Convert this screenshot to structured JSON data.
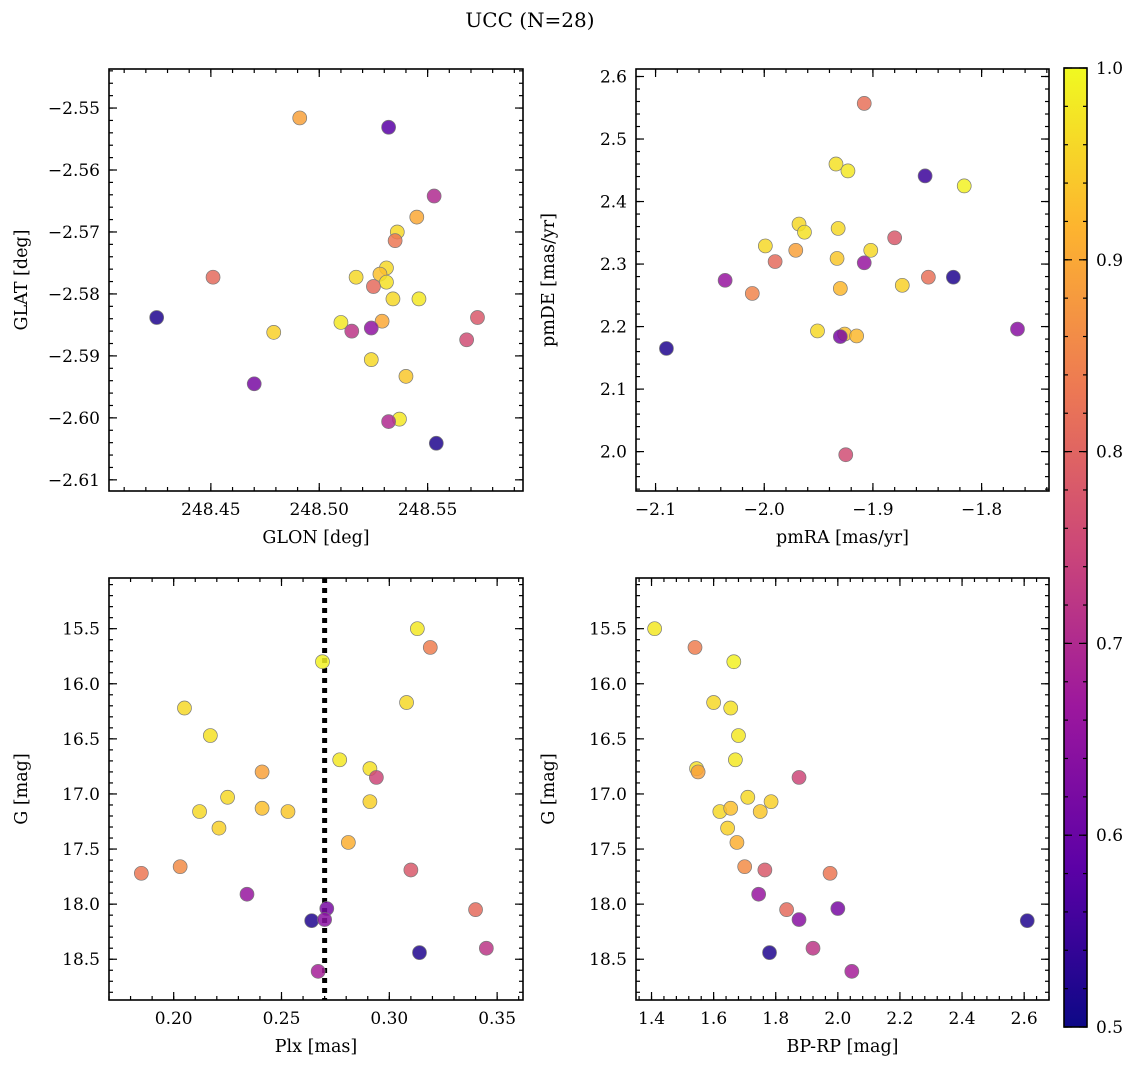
{
  "figure": {
    "title": "UCC (N=28)"
  },
  "colorbar": {
    "min": 0.5,
    "max": 1.0,
    "ticks": [
      0.5,
      0.6,
      0.7,
      0.8,
      0.9,
      1.0
    ],
    "tick_labels": [
      "0.5",
      "0.6",
      "0.7",
      "0.8",
      "0.9",
      "1.0"
    ],
    "colormap": "plasma",
    "colors": [
      "#0d0887",
      "#5c01a6",
      "#9c179e",
      "#cc4778",
      "#ed7953",
      "#fdb42f",
      "#f0f921"
    ]
  },
  "chart_data": [
    {
      "id": "glon-glat",
      "type": "scatter",
      "xlabel": "GLON [deg]",
      "ylabel": "GLAT [deg]",
      "xlim": [
        248.403,
        248.594
      ],
      "ylim": [
        -2.6118,
        -2.5437
      ],
      "xticks": [
        248.45,
        248.5,
        248.55
      ],
      "xtick_labels": [
        "248.45",
        "248.50",
        "248.55"
      ],
      "yticks": [
        -2.61,
        -2.6,
        -2.59,
        -2.58,
        -2.57,
        -2.56,
        -2.55
      ],
      "ytick_labels": [
        "−2.61",
        "−2.60",
        "−2.59",
        "−2.58",
        "−2.57",
        "−2.56",
        "−2.55"
      ],
      "x": [
        248.491,
        248.532,
        248.553,
        248.545,
        248.536,
        248.535,
        248.531,
        248.528,
        248.517,
        248.531,
        248.525,
        248.425,
        248.451,
        248.534,
        248.546,
        248.573,
        248.51,
        248.529,
        248.524,
        248.515,
        248.479,
        248.568,
        248.524,
        248.54,
        248.47,
        248.537,
        248.532,
        248.554
      ],
      "y": [
        -2.5516,
        -2.5531,
        -2.5642,
        -2.5676,
        -2.57,
        -2.5714,
        -2.5758,
        -2.5768,
        -2.5773,
        -2.5781,
        -2.5788,
        -2.5838,
        -2.5773,
        -2.5808,
        -2.5808,
        -2.5838,
        -2.5846,
        -2.5844,
        -2.5855,
        -2.586,
        -2.5862,
        -2.5874,
        -2.5906,
        -2.5933,
        -2.5945,
        -2.6002,
        -2.6006,
        -2.6041
      ],
      "c": [
        0.89,
        0.58,
        0.7,
        0.9,
        0.96,
        0.83,
        0.96,
        0.93,
        0.96,
        0.97,
        0.81,
        0.52,
        0.81,
        0.96,
        0.98,
        0.78,
        0.98,
        0.9,
        0.65,
        0.72,
        0.95,
        0.76,
        0.96,
        0.94,
        0.62,
        0.98,
        0.7,
        0.52
      ]
    },
    {
      "id": "pmra-pmde",
      "type": "scatter",
      "xlabel": "pmRA [mas/yr]",
      "ylabel": "pmDE [mas/yr]",
      "xlim": [
        -2.118,
        -1.738
      ],
      "ylim": [
        1.937,
        2.612
      ],
      "xticks": [
        -2.1,
        -2.0,
        -1.9,
        -1.8
      ],
      "xtick_labels": [
        "−2.1",
        "−2.0",
        "−1.9",
        "−1.8"
      ],
      "yticks": [
        2.0,
        2.1,
        2.2,
        2.3,
        2.4,
        2.5,
        2.6
      ],
      "ytick_labels": [
        "2.0",
        "2.1",
        "2.2",
        "2.3",
        "2.4",
        "2.5",
        "2.6"
      ],
      "x": [
        -1.908,
        -1.934,
        -1.923,
        -1.852,
        -1.816,
        -1.968,
        -1.932,
        -1.963,
        -1.88,
        -1.999,
        -1.971,
        -1.902,
        -1.99,
        -1.933,
        -2.036,
        -1.826,
        -1.849,
        -1.873,
        -1.93,
        -2.011,
        -1.951,
        -1.926,
        -1.915,
        -1.908,
        -1.93,
        -2.09,
        -1.767,
        -1.925
      ],
      "y": [
        2.557,
        2.46,
        2.449,
        2.441,
        2.425,
        2.364,
        2.357,
        2.351,
        2.342,
        2.329,
        2.322,
        2.322,
        2.304,
        2.309,
        2.274,
        2.279,
        2.279,
        2.266,
        2.261,
        2.253,
        2.193,
        2.188,
        2.185,
        2.302,
        2.184,
        2.165,
        2.196,
        1.995
      ],
      "c": [
        0.82,
        0.97,
        0.98,
        0.55,
        0.99,
        0.96,
        0.96,
        0.97,
        0.78,
        0.96,
        0.89,
        0.96,
        0.81,
        0.94,
        0.66,
        0.52,
        0.82,
        0.95,
        0.92,
        0.85,
        0.96,
        0.93,
        0.92,
        0.66,
        0.62,
        0.52,
        0.64,
        0.76
      ]
    },
    {
      "id": "plx-g",
      "type": "scatter",
      "xlabel": "Plx [mas]",
      "ylabel": "G [mag]",
      "xlim": [
        0.17,
        0.362
      ],
      "ylim": [
        18.87,
        15.04
      ],
      "y_inverted": true,
      "vline": 0.27,
      "xticks": [
        0.2,
        0.25,
        0.3,
        0.35
      ],
      "xtick_labels": [
        "0.20",
        "0.25",
        "0.30",
        "0.35"
      ],
      "yticks": [
        15.5,
        16.0,
        16.5,
        17.0,
        17.5,
        18.0,
        18.5
      ],
      "ytick_labels": [
        "15.5",
        "16.0",
        "16.5",
        "17.0",
        "17.5",
        "18.0",
        "18.5"
      ],
      "x": [
        0.313,
        0.319,
        0.269,
        0.205,
        0.308,
        0.217,
        0.277,
        0.291,
        0.294,
        0.241,
        0.291,
        0.225,
        0.212,
        0.241,
        0.253,
        0.221,
        0.281,
        0.203,
        0.185,
        0.31,
        0.234,
        0.34,
        0.271,
        0.264,
        0.27,
        0.314,
        0.345,
        0.267
      ],
      "y": [
        15.5,
        15.67,
        15.8,
        16.22,
        16.17,
        16.47,
        16.69,
        16.77,
        16.85,
        16.8,
        17.07,
        17.03,
        17.16,
        17.13,
        17.16,
        17.31,
        17.44,
        17.66,
        17.72,
        17.69,
        17.91,
        18.05,
        18.04,
        18.15,
        18.14,
        18.44,
        18.4,
        18.61
      ],
      "c": [
        0.98,
        0.84,
        0.99,
        0.96,
        0.96,
        0.97,
        0.98,
        0.97,
        0.75,
        0.89,
        0.95,
        0.96,
        0.96,
        0.93,
        0.94,
        0.95,
        0.91,
        0.86,
        0.83,
        0.78,
        0.66,
        0.81,
        0.62,
        0.52,
        0.64,
        0.52,
        0.72,
        0.68
      ]
    },
    {
      "id": "bprp-g",
      "type": "scatter",
      "xlabel": "BP-RP [mag]",
      "ylabel": "G [mag]",
      "xlim": [
        1.35,
        2.68
      ],
      "ylim": [
        18.87,
        15.04
      ],
      "y_inverted": true,
      "xticks": [
        1.4,
        1.6,
        1.8,
        2.0,
        2.2,
        2.4,
        2.6
      ],
      "xtick_labels": [
        "1.4",
        "1.6",
        "1.8",
        "2.0",
        "2.2",
        "2.4",
        "2.6"
      ],
      "yticks": [
        15.5,
        16.0,
        16.5,
        17.0,
        17.5,
        18.0,
        18.5
      ],
      "ytick_labels": [
        "15.5",
        "16.0",
        "16.5",
        "17.0",
        "17.5",
        "18.0",
        "18.5"
      ],
      "x": [
        1.41,
        1.54,
        1.665,
        1.6,
        1.655,
        1.68,
        1.67,
        1.545,
        1.55,
        1.875,
        1.71,
        1.785,
        1.62,
        1.655,
        1.75,
        1.645,
        1.675,
        1.7,
        1.765,
        1.975,
        1.745,
        1.835,
        2.0,
        2.61,
        1.875,
        1.78,
        1.92,
        2.045
      ],
      "y": [
        15.5,
        15.67,
        15.8,
        16.17,
        16.22,
        16.47,
        16.69,
        16.77,
        16.8,
        16.85,
        17.03,
        17.07,
        17.16,
        17.13,
        17.16,
        17.31,
        17.44,
        17.66,
        17.69,
        17.72,
        17.91,
        18.05,
        18.04,
        18.15,
        18.14,
        18.44,
        18.4,
        18.61
      ],
      "c": [
        0.98,
        0.84,
        0.99,
        0.96,
        0.97,
        0.98,
        0.98,
        0.97,
        0.89,
        0.75,
        0.96,
        0.95,
        0.96,
        0.93,
        0.94,
        0.95,
        0.91,
        0.86,
        0.78,
        0.83,
        0.66,
        0.81,
        0.62,
        0.52,
        0.64,
        0.52,
        0.72,
        0.68
      ]
    }
  ]
}
